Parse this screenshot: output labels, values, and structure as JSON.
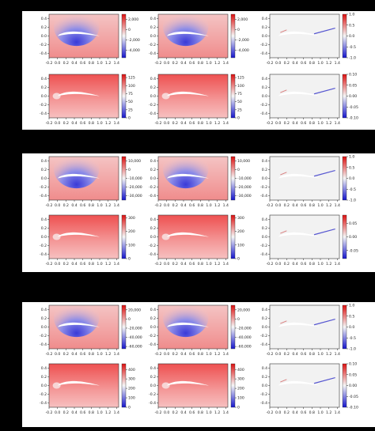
{
  "colors": {
    "background": "#000000",
    "panel": "#ffffff",
    "cmap_low": "#2222cc",
    "cmap_mid": "#f4f4f4",
    "cmap_high": "#e01818",
    "tick": "#222222"
  },
  "chart_data": {
    "type": "heatmap",
    "layout": "9 groups of 2 rows x 3 columns: prediction, reference, error",
    "x_ticks": [
      -0.2,
      0.0,
      0.2,
      0.4,
      0.6,
      0.8,
      1.0,
      1.2,
      1.4
    ],
    "y_ticks": [
      0.4,
      0.2,
      0.0,
      -0.2,
      -0.4
    ],
    "xlim": [
      -0.2,
      1.45
    ],
    "ylim": [
      -0.5,
      0.5
    ],
    "groups": [
      {
        "rows": [
          {
            "field": "pressure",
            "colorbar_ticks": [
              "2,000",
              "0",
              "-2,000",
              "-4,000"
            ],
            "colorbar_range": [
              -5500,
              3000
            ],
            "error_colorbar_ticks": [
              "1.0",
              "0.5",
              "0.0",
              "-0.5",
              "-1.0"
            ],
            "error_range": [
              -1.0,
              1.0
            ]
          },
          {
            "field": "velocity",
            "colorbar_ticks": [
              "125",
              "100",
              "75",
              "50",
              "25",
              "0"
            ],
            "colorbar_range": [
              0,
              135
            ],
            "error_colorbar_ticks": [
              "0.10",
              "0.05",
              "0.00",
              "-0.05",
              "-0.10"
            ],
            "error_range": [
              -0.1,
              0.1
            ]
          }
        ]
      },
      {
        "rows": [
          {
            "field": "pressure",
            "colorbar_ticks": [
              "10,000",
              "0",
              "-10,000",
              "-20,000",
              "-30,000"
            ],
            "colorbar_range": [
              -35000,
              15000
            ],
            "error_colorbar_ticks": [
              "1.0",
              "0.5",
              "0.0",
              "-0.5",
              "-1.0"
            ],
            "error_range": [
              -1.0,
              1.0
            ]
          },
          {
            "field": "velocity",
            "colorbar_ticks": [
              "300",
              "200",
              "100",
              "0"
            ],
            "colorbar_range": [
              0,
              320
            ],
            "error_colorbar_ticks": [
              "0.05",
              "0.00",
              "-0.05"
            ],
            "error_range": [
              -0.08,
              0.08
            ]
          }
        ]
      },
      {
        "rows": [
          {
            "field": "pressure",
            "colorbar_ticks": [
              "20,000",
              "0",
              "-20,000",
              "-40,000",
              "-60,000"
            ],
            "colorbar_range": [
              -65000,
              30000
            ],
            "error_colorbar_ticks": [
              "1.0",
              "0.5",
              "0.0",
              "-0.5",
              "-1.0"
            ],
            "error_range": [
              -1.0,
              1.0
            ]
          },
          {
            "field": "velocity",
            "colorbar_ticks": [
              "400",
              "300",
              "200",
              "100",
              "0"
            ],
            "colorbar_range": [
              0,
              460
            ],
            "error_colorbar_ticks": [
              "0.10",
              "0.05",
              "0.00",
              "-0.05",
              "-0.10"
            ],
            "error_range": [
              -0.1,
              0.1
            ]
          }
        ]
      }
    ]
  }
}
